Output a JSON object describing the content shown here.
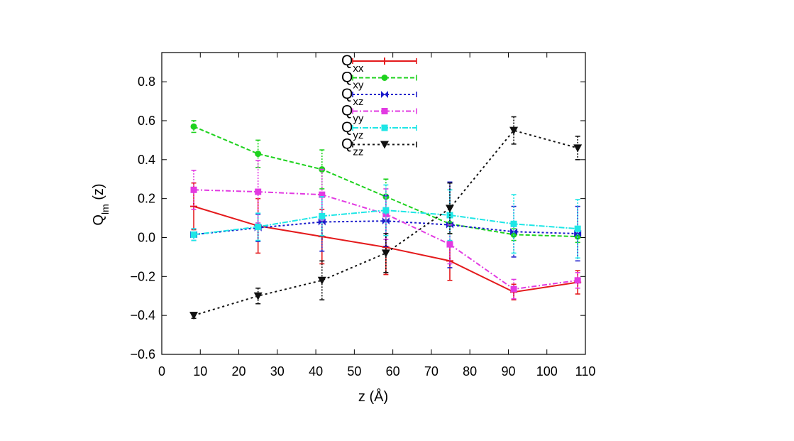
{
  "chart_data": {
    "type": "line",
    "xlabel": "z (Å)",
    "ylabel_main": "Q",
    "ylabel_sub": "lm",
    "ylabel_suffix": " (z)",
    "xlim": [
      0,
      110
    ],
    "ylim": [
      -0.6,
      0.95
    ],
    "xticks": [
      0,
      10,
      20,
      30,
      40,
      50,
      60,
      70,
      80,
      90,
      100,
      110
    ],
    "yticks": [
      -0.6,
      -0.4,
      -0.2,
      0.0,
      0.2,
      0.4,
      0.6,
      0.8
    ],
    "ytick_labels": [
      "−0.6",
      "−0.4",
      "−0.2",
      "0.0",
      "0.2",
      "0.4",
      "0.6",
      "0.8"
    ],
    "legend_position": "top-center",
    "x": [
      8.3,
      25,
      41.6,
      58.2,
      74.8,
      91.4,
      108
    ],
    "series": [
      {
        "name": "Q",
        "sub": "xx",
        "color": "#e41a1c",
        "marker": "plus",
        "dash": "solid",
        "values": [
          0.16,
          0.06,
          0.005,
          -0.05,
          -0.12,
          -0.28,
          -0.23
        ],
        "errors": [
          0.12,
          0.14,
          0.14,
          0.14,
          0.1,
          0.04,
          0.06
        ]
      },
      {
        "name": "Q",
        "sub": "xy",
        "color": "#1ed21e",
        "marker": "circle",
        "dash": "6,3",
        "values": [
          0.57,
          0.43,
          0.35,
          0.21,
          0.07,
          0.015,
          0.005
        ],
        "errors": [
          0.03,
          0.07,
          0.1,
          0.09,
          0.05,
          0.03,
          0.03
        ]
      },
      {
        "name": "Q",
        "sub": "xz",
        "color": "#1c1ccc",
        "marker": "bowtie",
        "dash": "3,3",
        "values": [
          0.015,
          0.05,
          0.08,
          0.085,
          0.065,
          0.03,
          0.02
        ],
        "errors": [
          0.03,
          0.07,
          0.15,
          0.13,
          0.22,
          0.13,
          0.14
        ]
      },
      {
        "name": "Q",
        "sub": "yy",
        "color": "#e23ae2",
        "marker": "square",
        "dash": "7,3,2,3",
        "values": [
          0.245,
          0.235,
          0.22,
          0.12,
          -0.035,
          -0.265,
          -0.22
        ],
        "errors": [
          0.1,
          0.16,
          0.13,
          0.13,
          0.1,
          0.05,
          0.04
        ]
      },
      {
        "name": "Q",
        "sub": "yz",
        "color": "#1ee6e6",
        "marker": "square",
        "dash": "8,2,2,2",
        "values": [
          0.015,
          0.055,
          0.11,
          0.14,
          0.115,
          0.07,
          0.045
        ],
        "errors": [
          0.03,
          0.07,
          0.1,
          0.13,
          0.13,
          0.15,
          0.15
        ]
      },
      {
        "name": "Q",
        "sub": "zz",
        "color": "#111111",
        "marker": "triangle-down",
        "dash": "3,4",
        "values": [
          -0.4,
          -0.3,
          -0.22,
          -0.08,
          0.15,
          0.55,
          0.46
        ],
        "errors": [
          0.015,
          0.04,
          0.1,
          0.1,
          0.13,
          0.07,
          0.06
        ]
      }
    ]
  }
}
